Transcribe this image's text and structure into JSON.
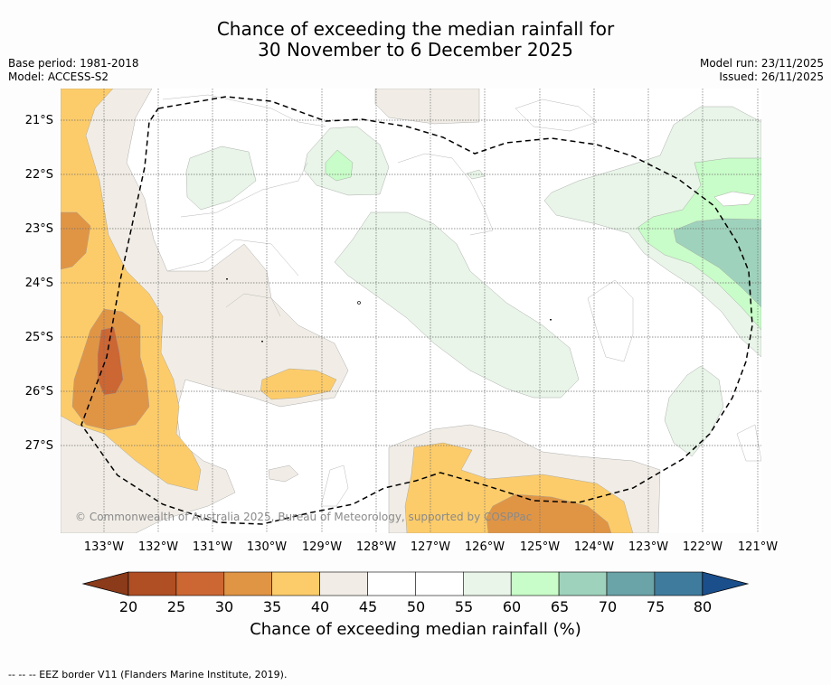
{
  "header": {
    "title_line1": "Chance of exceeding the median rainfall for",
    "title_line2": "30 November to 6 December 2025",
    "base_period": "Base period: 1981-2018",
    "model": "Model: ACCESS-S2",
    "model_run": "Model run: 23/11/2025",
    "issued": "Issued: 26/11/2025"
  },
  "map": {
    "lat_labels": [
      "21°S",
      "22°S",
      "23°S",
      "24°S",
      "25°S",
      "26°S",
      "27°S"
    ],
    "lon_labels": [
      "133°W",
      "132°W",
      "131°W",
      "130°W",
      "129°W",
      "128°W",
      "127°W",
      "126°W",
      "125°W",
      "124°W",
      "123°W",
      "122°W",
      "121°W"
    ],
    "copyright": "© Commonwealth of Australia 2025, Bureau of Meteorology, supported by COSPPac"
  },
  "colorbar": {
    "ticks": [
      "20",
      "25",
      "30",
      "35",
      "40",
      "45",
      "50",
      "55",
      "60",
      "65",
      "70",
      "75",
      "80"
    ],
    "colors": [
      "#8b3a1a",
      "#b04e24",
      "#cc6633",
      "#e09545",
      "#fdcc6a",
      "#f1ede6",
      "#ffffff",
      "#ffffff",
      "#e8f5e8",
      "#c8fcc8",
      "#9fd2bc",
      "#6aa3a8",
      "#3f7b9c",
      "#1a4f8c"
    ],
    "label": "Chance of exceeding median rainfall (%)"
  },
  "footer": {
    "legend": "--  --  -- EEZ border V11 (Flanders Marine Institute, 2019)."
  }
}
